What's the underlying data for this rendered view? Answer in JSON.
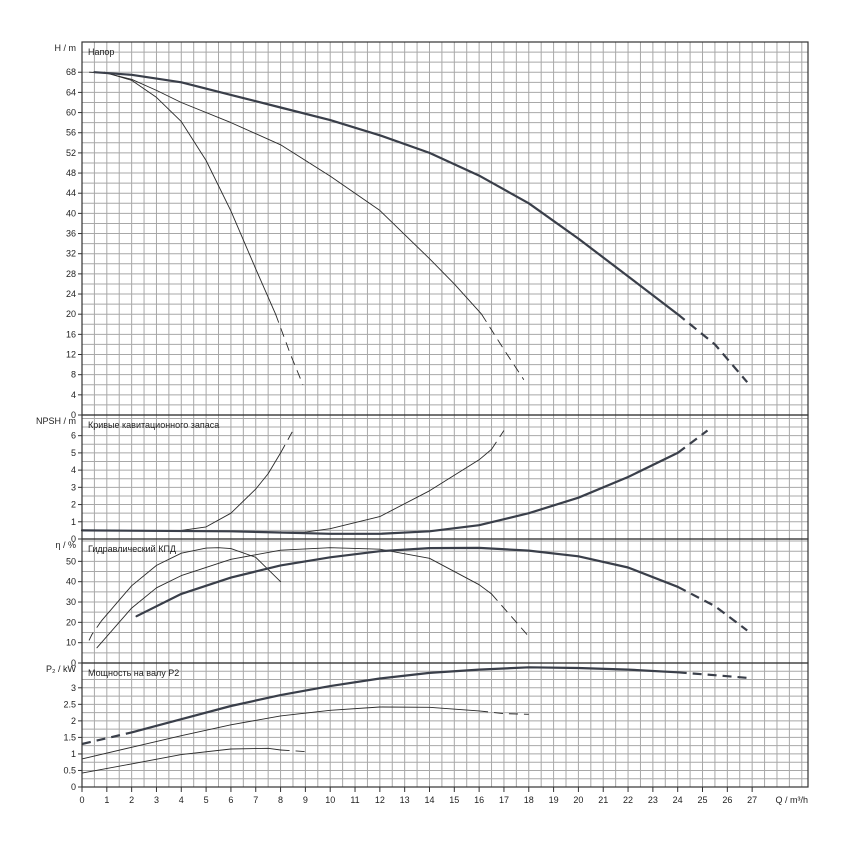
{
  "chart_data": {
    "type": "line",
    "xlabel": "Q / m³/h",
    "x_ticks": [
      0,
      1,
      2,
      3,
      4,
      5,
      6,
      7,
      8,
      9,
      10,
      11,
      12,
      13,
      14,
      15,
      16,
      17,
      18,
      19,
      20,
      21,
      22,
      23,
      24,
      25,
      26,
      27
    ],
    "xlim": [
      0,
      29.25
    ],
    "grid": true,
    "panels": [
      {
        "id": "head",
        "title": "Напор",
        "ylabel": "H / m",
        "ylim": [
          0,
          74
        ],
        "y_ticks": [
          0,
          4,
          8,
          12,
          16,
          20,
          24,
          28,
          32,
          36,
          40,
          44,
          48,
          52,
          56,
          60,
          64,
          68
        ],
        "series": [
          {
            "weight": "thin",
            "solid": [
              [
                0.9,
                68
              ],
              [
                2,
                66.4
              ],
              [
                3,
                63
              ],
              [
                4,
                58.2
              ],
              [
                5,
                50.5
              ],
              [
                6,
                40.5
              ],
              [
                7,
                29
              ],
              [
                7.8,
                20
              ]
            ],
            "dashed": [
              [
                7.8,
                20
              ],
              [
                8.4,
                12
              ],
              [
                8.9,
                6
              ]
            ]
          },
          {
            "weight": "thin",
            "solid": [
              [
                0.3,
                68
              ],
              [
                1,
                67.8
              ],
              [
                2,
                66.6
              ],
              [
                3,
                64.4
              ],
              [
                4,
                62
              ],
              [
                6,
                58
              ],
              [
                8,
                53.6
              ],
              [
                10,
                47.4
              ],
              [
                12,
                40.6
              ],
              [
                14,
                31
              ],
              [
                15,
                26
              ],
              [
                16.1,
                20
              ]
            ],
            "dashed": [
              [
                16.1,
                20
              ],
              [
                17,
                13
              ],
              [
                17.8,
                7
              ]
            ]
          },
          {
            "weight": "bold",
            "solid": [
              [
                0.5,
                68
              ],
              [
                2,
                67.5
              ],
              [
                4,
                66
              ],
              [
                6,
                63.5
              ],
              [
                8,
                61
              ],
              [
                10,
                58.5
              ],
              [
                12,
                55.5
              ],
              [
                14,
                52
              ],
              [
                16,
                47.5
              ],
              [
                18,
                42
              ],
              [
                20,
                35
              ],
              [
                22,
                27.5
              ],
              [
                24,
                20
              ]
            ],
            "dashed": [
              [
                24,
                20
              ],
              [
                25.5,
                14
              ],
              [
                26.8,
                6.5
              ]
            ]
          }
        ]
      },
      {
        "id": "npsh",
        "title": "Кривые кавитационного запаса",
        "ylabel": "NPSH / m",
        "ylim": [
          0,
          7.2
        ],
        "y_ticks": [
          0,
          1,
          2,
          3,
          4,
          5,
          6
        ],
        "series": [
          {
            "weight": "thin",
            "solid": [
              [
                0,
                0.5
              ],
              [
                4,
                0.5
              ],
              [
                5,
                0.7
              ],
              [
                6,
                1.5
              ],
              [
                7,
                2.9
              ],
              [
                7.5,
                3.8
              ],
              [
                8,
                5
              ]
            ],
            "dashed": [
              [
                8,
                5
              ],
              [
                8.5,
                6.3
              ]
            ]
          },
          {
            "weight": "thin",
            "solid": [
              [
                0,
                0.5
              ],
              [
                9,
                0.4
              ],
              [
                10,
                0.6
              ],
              [
                12,
                1.3
              ],
              [
                14,
                2.8
              ],
              [
                16,
                4.6
              ],
              [
                16.5,
                5.2
              ]
            ],
            "dashed": [
              [
                16.5,
                5.2
              ],
              [
                17,
                6.3
              ]
            ]
          },
          {
            "weight": "bold",
            "solid": [
              [
                0,
                0.5
              ],
              [
                6,
                0.45
              ],
              [
                10,
                0.3
              ],
              [
                12,
                0.3
              ],
              [
                14,
                0.45
              ],
              [
                16,
                0.8
              ],
              [
                18,
                1.5
              ],
              [
                20,
                2.4
              ],
              [
                22,
                3.6
              ],
              [
                24,
                5
              ]
            ],
            "dashed": [
              [
                24,
                5
              ],
              [
                25.2,
                6.3
              ]
            ]
          }
        ]
      },
      {
        "id": "efficiency",
        "title": "Гидравлический КПД",
        "ylabel": "η / %",
        "ylim": [
          0,
          61
        ],
        "y_ticks": [
          0,
          10,
          20,
          30,
          40,
          50
        ],
        "series": [
          {
            "weight": "thin",
            "solid": [
              [
                0.8,
                21
              ],
              [
                2,
                38
              ],
              [
                3,
                48
              ],
              [
                4,
                54
              ],
              [
                5,
                56.5
              ],
              [
                5.5,
                56.7
              ],
              [
                6,
                56.3
              ],
              [
                7,
                52
              ],
              [
                8,
                40
              ]
            ],
            "dashed": [
              [
                0.8,
                21
              ],
              [
                0.4,
                14
              ],
              [
                0.2,
                9
              ]
            ]
          },
          {
            "weight": "thin",
            "solid": [
              [
                0.6,
                7.5
              ],
              [
                2,
                27
              ],
              [
                3,
                37
              ],
              [
                4,
                43
              ],
              [
                6,
                51
              ],
              [
                8,
                55.5
              ],
              [
                10,
                56.7
              ],
              [
                12,
                56
              ],
              [
                14,
                51.5
              ],
              [
                16,
                38.5
              ],
              [
                16.5,
                34
              ]
            ],
            "dashed": [
              [
                16.5,
                34
              ],
              [
                17.5,
                20
              ],
              [
                18,
                13
              ]
            ]
          },
          {
            "weight": "bold",
            "solid": [
              [
                2.2,
                23
              ],
              [
                4,
                34
              ],
              [
                6,
                42
              ],
              [
                8,
                48
              ],
              [
                10,
                52
              ],
              [
                12,
                55
              ],
              [
                14,
                56.5
              ],
              [
                16,
                56.6
              ],
              [
                18,
                55.3
              ],
              [
                20,
                52.5
              ],
              [
                22,
                47
              ],
              [
                24,
                37.5
              ]
            ],
            "dashed": [
              [
                24,
                37.5
              ],
              [
                25.5,
                28
              ],
              [
                26.8,
                16
              ]
            ]
          }
        ]
      },
      {
        "id": "power",
        "title": "Мощность на валу Р2",
        "ylabel": "P₂ / kW",
        "ylim": [
          0,
          3.75
        ],
        "y_ticks": [
          0,
          0.5,
          1,
          1.5,
          2,
          2.5,
          3
        ],
        "y_tick_labels": [
          "0",
          "0.5",
          "1",
          "1.5",
          "2",
          "2.5",
          "3"
        ],
        "series": [
          {
            "weight": "thin",
            "solid": [
              [
                0,
                0.42
              ],
              [
                2,
                0.7
              ],
              [
                4,
                0.98
              ],
              [
                6,
                1.15
              ],
              [
                7.5,
                1.17
              ],
              [
                8,
                1.12
              ]
            ],
            "dashed": [
              [
                8,
                1.12
              ],
              [
                9,
                1.07
              ]
            ]
          },
          {
            "weight": "thin",
            "solid": [
              [
                0,
                0.85
              ],
              [
                2,
                1.2
              ],
              [
                4,
                1.55
              ],
              [
                6,
                1.88
              ],
              [
                8,
                2.15
              ],
              [
                10,
                2.32
              ],
              [
                12,
                2.42
              ],
              [
                14,
                2.41
              ],
              [
                16,
                2.3
              ]
            ],
            "dashed": [
              [
                16,
                2.3
              ],
              [
                17,
                2.22
              ],
              [
                18,
                2.2
              ]
            ]
          },
          {
            "weight": "bold",
            "solid": [
              [
                2,
                1.65
              ],
              [
                4,
                2.05
              ],
              [
                6,
                2.45
              ],
              [
                8,
                2.78
              ],
              [
                10,
                3.05
              ],
              [
                12,
                3.28
              ],
              [
                14,
                3.45
              ],
              [
                16,
                3.55
              ],
              [
                18,
                3.62
              ],
              [
                20,
                3.6
              ],
              [
                22,
                3.55
              ],
              [
                24,
                3.47
              ]
            ],
            "dashed": [
              [
                0,
                1.3
              ],
              [
                2,
                1.65
              ]
            ]
          },
          {
            "weight": "bold",
            "solid": [],
            "dashed": [
              [
                24,
                3.47
              ],
              [
                25.5,
                3.38
              ],
              [
                26.8,
                3.3
              ]
            ]
          }
        ]
      }
    ]
  }
}
